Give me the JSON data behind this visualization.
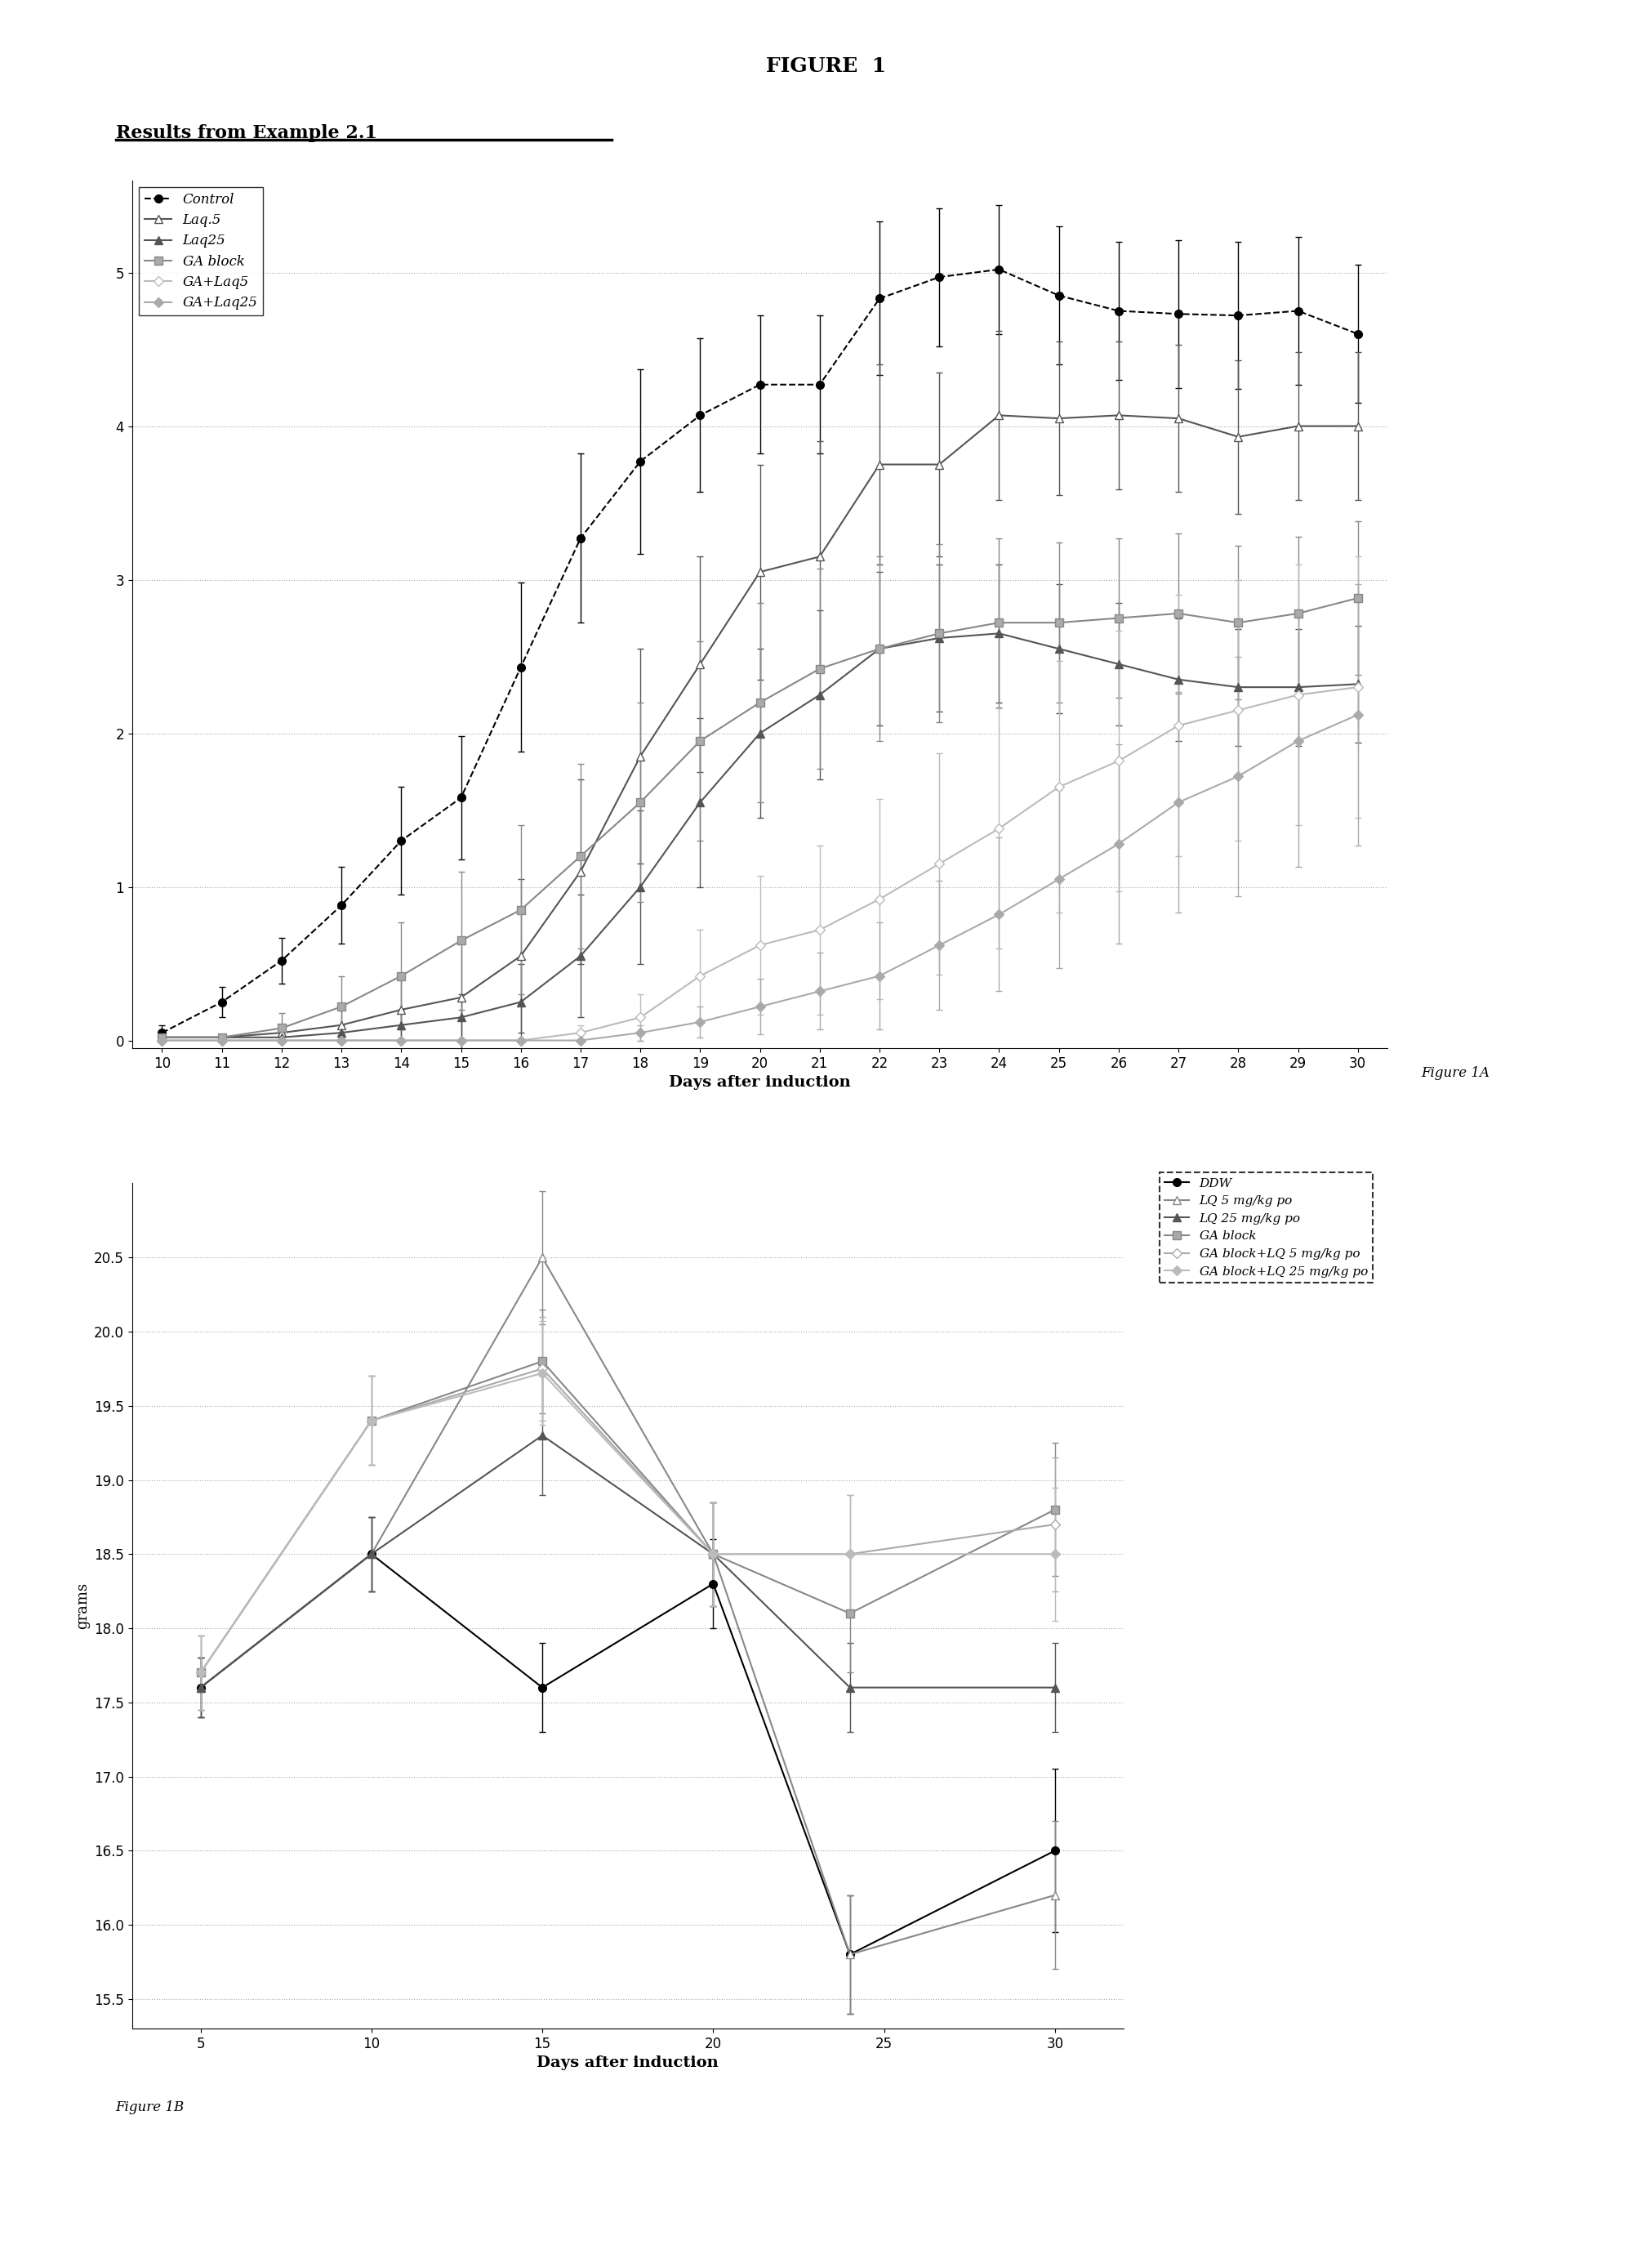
{
  "fig_title": "FIGURE  1",
  "subtitle": "Results from Example 2.1",
  "background_color": "#ffffff",
  "plot1": {
    "x": [
      10,
      11,
      12,
      13,
      14,
      15,
      16,
      17,
      18,
      19,
      20,
      21,
      22,
      23,
      24,
      25,
      26,
      27,
      28,
      29,
      30
    ],
    "xlabel": "Days after induction",
    "ylabel": "",
    "ylim": [
      -0.05,
      5.6
    ],
    "xlim": [
      9.5,
      30.5
    ],
    "yticks": [
      0.0,
      1.0,
      2.0,
      3.0,
      4.0,
      5.0
    ],
    "xticks": [
      10,
      11,
      12,
      13,
      14,
      15,
      16,
      17,
      18,
      19,
      20,
      21,
      22,
      23,
      24,
      25,
      26,
      27,
      28,
      29,
      30
    ],
    "figcaption": "Figure 1A",
    "series": [
      {
        "label": "Control",
        "y": [
          0.05,
          0.25,
          0.52,
          0.88,
          1.3,
          1.58,
          2.43,
          3.27,
          3.77,
          4.07,
          4.27,
          4.27,
          4.83,
          4.97,
          5.02,
          4.85,
          4.75,
          4.73,
          4.72,
          4.75,
          4.6
        ],
        "yerr": [
          0.05,
          0.1,
          0.15,
          0.25,
          0.35,
          0.4,
          0.55,
          0.55,
          0.6,
          0.5,
          0.45,
          0.45,
          0.5,
          0.45,
          0.42,
          0.45,
          0.45,
          0.48,
          0.48,
          0.48,
          0.45
        ],
        "color": "#000000",
        "linestyle": "--",
        "marker": "o",
        "markerfacecolor": "#000000",
        "markersize": 7
      },
      {
        "label": "Laq.5",
        "y": [
          0.02,
          0.02,
          0.05,
          0.1,
          0.2,
          0.28,
          0.55,
          1.1,
          1.85,
          2.45,
          3.05,
          3.15,
          3.75,
          3.75,
          4.07,
          4.05,
          4.07,
          4.05,
          3.93,
          4.0,
          4.0
        ],
        "yerr": [
          0.02,
          0.02,
          0.05,
          0.1,
          0.2,
          0.35,
          0.5,
          0.6,
          0.7,
          0.7,
          0.7,
          0.75,
          0.65,
          0.6,
          0.55,
          0.5,
          0.48,
          0.48,
          0.5,
          0.48,
          0.48
        ],
        "color": "#555555",
        "linestyle": "-",
        "marker": "^",
        "markerfacecolor": "#ffffff",
        "markersize": 7
      },
      {
        "label": "Laq25",
        "y": [
          0.02,
          0.02,
          0.02,
          0.05,
          0.1,
          0.15,
          0.25,
          0.55,
          1.0,
          1.55,
          2.0,
          2.25,
          2.55,
          2.62,
          2.65,
          2.55,
          2.45,
          2.35,
          2.3,
          2.3,
          2.32
        ],
        "yerr": [
          0.02,
          0.02,
          0.02,
          0.05,
          0.1,
          0.15,
          0.25,
          0.4,
          0.5,
          0.55,
          0.55,
          0.55,
          0.5,
          0.48,
          0.45,
          0.42,
          0.4,
          0.4,
          0.38,
          0.38,
          0.38
        ],
        "color": "#555555",
        "linestyle": "-",
        "marker": "^",
        "markerfacecolor": "#555555",
        "markersize": 7
      },
      {
        "label": "GA block",
        "y": [
          0.02,
          0.02,
          0.08,
          0.22,
          0.42,
          0.65,
          0.85,
          1.2,
          1.55,
          1.95,
          2.2,
          2.42,
          2.55,
          2.65,
          2.72,
          2.72,
          2.75,
          2.78,
          2.72,
          2.78,
          2.88
        ],
        "yerr": [
          0.02,
          0.02,
          0.1,
          0.2,
          0.35,
          0.45,
          0.55,
          0.6,
          0.65,
          0.65,
          0.65,
          0.65,
          0.6,
          0.58,
          0.55,
          0.52,
          0.52,
          0.52,
          0.5,
          0.5,
          0.5
        ],
        "color": "#888888",
        "linestyle": "-",
        "marker": "s",
        "markerfacecolor": "#aaaaaa",
        "markersize": 7
      },
      {
        "label": "GA+Laq5",
        "y": [
          0.0,
          0.0,
          0.0,
          0.0,
          0.0,
          0.0,
          0.0,
          0.05,
          0.15,
          0.42,
          0.62,
          0.72,
          0.92,
          1.15,
          1.38,
          1.65,
          1.82,
          2.05,
          2.15,
          2.25,
          2.3
        ],
        "yerr": [
          0.01,
          0.01,
          0.01,
          0.01,
          0.01,
          0.01,
          0.01,
          0.05,
          0.15,
          0.3,
          0.45,
          0.55,
          0.65,
          0.72,
          0.78,
          0.82,
          0.85,
          0.85,
          0.85,
          0.85,
          0.85
        ],
        "color": "#bbbbbb",
        "linestyle": "-",
        "marker": "D",
        "markerfacecolor": "#ffffff",
        "markersize": 6
      },
      {
        "label": "GA+Laq25",
        "y": [
          0.0,
          0.0,
          0.0,
          0.0,
          0.0,
          0.0,
          0.0,
          0.0,
          0.05,
          0.12,
          0.22,
          0.32,
          0.42,
          0.62,
          0.82,
          1.05,
          1.28,
          1.55,
          1.72,
          1.95,
          2.12
        ],
        "yerr": [
          0.01,
          0.01,
          0.01,
          0.01,
          0.01,
          0.01,
          0.01,
          0.01,
          0.05,
          0.1,
          0.18,
          0.25,
          0.35,
          0.42,
          0.5,
          0.58,
          0.65,
          0.72,
          0.78,
          0.82,
          0.85
        ],
        "color": "#aaaaaa",
        "linestyle": "-",
        "marker": "D",
        "markerfacecolor": "#aaaaaa",
        "markersize": 6
      }
    ]
  },
  "plot2": {
    "x": [
      5,
      10,
      15,
      20,
      24,
      30
    ],
    "xlabel": "Days after induction",
    "ylabel": "grams",
    "ylim": [
      15.3,
      21.0
    ],
    "xlim": [
      3,
      32
    ],
    "yticks": [
      15.5,
      16.0,
      16.5,
      17.0,
      17.5,
      18.0,
      18.5,
      19.0,
      19.5,
      20.0,
      20.5
    ],
    "xticks": [
      5,
      10,
      15,
      20,
      25,
      30
    ],
    "figcaption": "Figure 1B",
    "series": [
      {
        "label": "DDW",
        "y": [
          17.6,
          18.5,
          17.6,
          18.3,
          15.8,
          16.5
        ],
        "yerr": [
          0.2,
          0.25,
          0.3,
          0.3,
          0.4,
          0.55
        ],
        "color": "#000000",
        "linestyle": "-",
        "marker": "o",
        "markerfacecolor": "#000000",
        "markersize": 7
      },
      {
        "label": "LQ 5 mg/kg po",
        "y": [
          17.6,
          18.5,
          20.5,
          18.5,
          15.8,
          16.2
        ],
        "yerr": [
          0.2,
          0.25,
          0.45,
          0.35,
          0.4,
          0.5
        ],
        "color": "#888888",
        "linestyle": "-",
        "marker": "^",
        "markerfacecolor": "#ffffff",
        "markersize": 7
      },
      {
        "label": "LQ 25 mg/kg po",
        "y": [
          17.6,
          18.5,
          19.3,
          18.5,
          17.6,
          17.6
        ],
        "yerr": [
          0.2,
          0.25,
          0.4,
          0.35,
          0.3,
          0.3
        ],
        "color": "#555555",
        "linestyle": "-",
        "marker": "^",
        "markerfacecolor": "#555555",
        "markersize": 7
      },
      {
        "label": "GA block",
        "y": [
          17.7,
          19.4,
          19.8,
          18.5,
          18.1,
          18.8
        ],
        "yerr": [
          0.25,
          0.3,
          0.35,
          0.35,
          0.4,
          0.45
        ],
        "color": "#888888",
        "linestyle": "-",
        "marker": "s",
        "markerfacecolor": "#aaaaaa",
        "markersize": 7
      },
      {
        "label": "GA block+LQ 5 mg/kg po",
        "y": [
          17.7,
          19.4,
          19.75,
          18.5,
          18.5,
          18.7
        ],
        "yerr": [
          0.25,
          0.3,
          0.35,
          0.35,
          0.4,
          0.45
        ],
        "color": "#aaaaaa",
        "linestyle": "-",
        "marker": "D",
        "markerfacecolor": "#ffffff",
        "markersize": 6
      },
      {
        "label": "GA block+LQ 25 mg/kg po",
        "y": [
          17.7,
          19.4,
          19.72,
          18.5,
          18.5,
          18.5
        ],
        "yerr": [
          0.25,
          0.3,
          0.35,
          0.35,
          0.4,
          0.45
        ],
        "color": "#bbbbbb",
        "linestyle": "-",
        "marker": "D",
        "markerfacecolor": "#bbbbbb",
        "markersize": 6
      }
    ]
  }
}
